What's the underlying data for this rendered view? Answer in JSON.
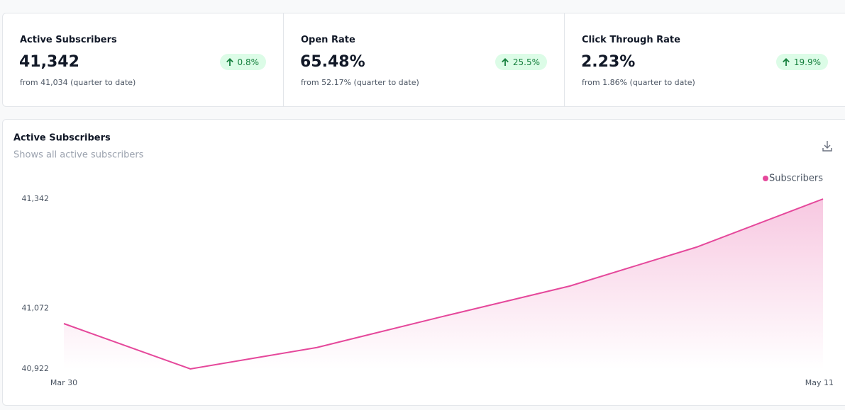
{
  "cards": [
    {
      "title": "Active Subscribers",
      "value": "41,342",
      "change": "0.8%",
      "note": "from 41,034 (quarter to date)"
    },
    {
      "title": "Open Rate",
      "value": "65.48%",
      "change": "25.5%",
      "note": "from 52.17% (quarter to date)"
    },
    {
      "title": "Click Through Rate",
      "value": "2.23%",
      "change": "19.9%",
      "note": "from 1.86% (quarter to date)"
    }
  ],
  "chart_data": {
    "type": "area",
    "title": "Active Subscribers",
    "subtitle": "Shows all active subscribers",
    "categories": [
      "Mar 30",
      null,
      null,
      null,
      null,
      null,
      "May 11"
    ],
    "series": [
      {
        "name": "Subscribers",
        "color": "#e5489b",
        "values": [
          41034,
          40922,
          40975,
          41052,
          41127,
          41223,
          41342
        ]
      }
    ],
    "ylim": [
      40922,
      41342
    ],
    "yticks": [
      {
        "value": 40922,
        "label": "40,922"
      },
      {
        "value": 41072,
        "label": "41,072"
      },
      {
        "value": 41342,
        "label": "41,342"
      }
    ],
    "grid": false,
    "legend": "top-right"
  }
}
